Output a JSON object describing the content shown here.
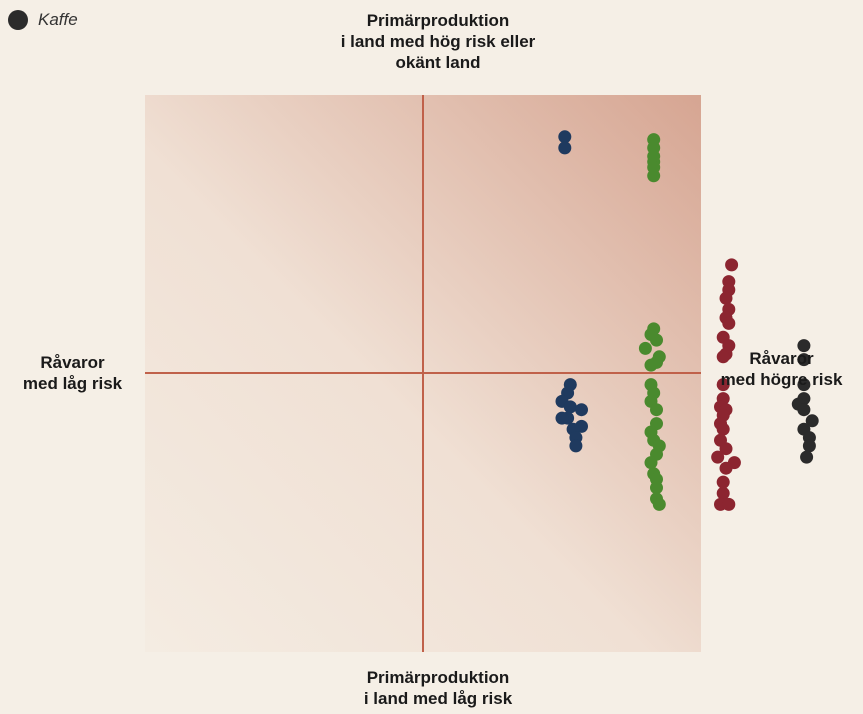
{
  "legend": {
    "items": [
      {
        "label": "Kaffe",
        "color": "#2b2b2b"
      }
    ]
  },
  "labels": {
    "top": [
      "Primärproduktion",
      "i land med hög risk eller",
      "okänt land"
    ],
    "bottom": [
      "Primärproduktion",
      "i land med låg risk"
    ],
    "left": [
      "Råvaror",
      "med låg risk"
    ],
    "right": [
      "Råvaror",
      "med högre risk"
    ]
  },
  "colors": {
    "background": "#f5efe6",
    "quadrant_light": "#f2e7dc",
    "quadrant_dark": "#d6a592",
    "axis": "#c0614a",
    "navy": "#1f3a5f",
    "green": "#4a8a2e",
    "red": "#8c2530",
    "black": "#2b2b2b"
  },
  "chart_data": {
    "type": "scatter",
    "title": "",
    "xlim": [
      -1,
      1
    ],
    "ylim": [
      -1,
      1
    ],
    "grid": false,
    "axes": "cross-at-origin",
    "series": [
      {
        "color": "#1f3a5f",
        "points": [
          [
            0.51,
            0.85
          ],
          [
            0.51,
            0.81
          ],
          [
            0.53,
            -0.04
          ],
          [
            0.52,
            -0.07
          ],
          [
            0.5,
            -0.1
          ],
          [
            0.53,
            -0.12
          ],
          [
            0.57,
            -0.13
          ],
          [
            0.52,
            -0.16
          ],
          [
            0.5,
            -0.16
          ],
          [
            0.57,
            -0.19
          ],
          [
            0.54,
            -0.2
          ],
          [
            0.55,
            -0.23
          ],
          [
            0.55,
            -0.26
          ]
        ]
      },
      {
        "color": "#4a8a2e",
        "points": [
          [
            0.83,
            0.84
          ],
          [
            0.83,
            0.81
          ],
          [
            0.83,
            0.78
          ],
          [
            0.83,
            0.76
          ],
          [
            0.83,
            0.74
          ],
          [
            0.83,
            0.71
          ],
          [
            0.83,
            0.16
          ],
          [
            0.82,
            0.14
          ],
          [
            0.84,
            0.12
          ],
          [
            0.8,
            0.09
          ],
          [
            0.85,
            0.06
          ],
          [
            0.82,
            0.03
          ],
          [
            0.84,
            0.04
          ],
          [
            0.82,
            -0.04
          ],
          [
            0.83,
            -0.07
          ],
          [
            0.82,
            -0.1
          ],
          [
            0.84,
            -0.13
          ],
          [
            0.84,
            -0.18
          ],
          [
            0.82,
            -0.21
          ],
          [
            0.83,
            -0.24
          ],
          [
            0.85,
            -0.26
          ],
          [
            0.84,
            -0.29
          ],
          [
            0.82,
            -0.32
          ],
          [
            0.83,
            -0.36
          ],
          [
            0.84,
            -0.38
          ],
          [
            0.84,
            -0.41
          ],
          [
            0.84,
            -0.45
          ],
          [
            0.85,
            -0.47
          ]
        ]
      },
      {
        "color": "#8c2530",
        "points": [
          [
            1.11,
            0.39
          ],
          [
            1.1,
            0.33
          ],
          [
            1.1,
            0.3
          ],
          [
            1.09,
            0.27
          ],
          [
            1.1,
            0.23
          ],
          [
            1.09,
            0.2
          ],
          [
            1.1,
            0.18
          ],
          [
            1.08,
            0.13
          ],
          [
            1.1,
            0.1
          ],
          [
            1.09,
            0.07
          ],
          [
            1.08,
            0.06
          ],
          [
            1.08,
            -0.04
          ],
          [
            1.08,
            -0.09
          ],
          [
            1.07,
            -0.12
          ],
          [
            1.09,
            -0.13
          ],
          [
            1.08,
            -0.15
          ],
          [
            1.07,
            -0.18
          ],
          [
            1.08,
            -0.2
          ],
          [
            1.07,
            -0.24
          ],
          [
            1.09,
            -0.27
          ],
          [
            1.06,
            -0.3
          ],
          [
            1.12,
            -0.32
          ],
          [
            1.09,
            -0.34
          ],
          [
            1.08,
            -0.39
          ],
          [
            1.08,
            -0.43
          ],
          [
            1.07,
            -0.47
          ],
          [
            1.1,
            -0.47
          ]
        ]
      },
      {
        "color": "#2b2b2b",
        "points": [
          [
            1.37,
            0.1
          ],
          [
            1.37,
            0.05
          ],
          [
            1.37,
            -0.04
          ],
          [
            1.37,
            -0.09
          ],
          [
            1.35,
            -0.11
          ],
          [
            1.37,
            -0.13
          ],
          [
            1.4,
            -0.17
          ],
          [
            1.37,
            -0.2
          ],
          [
            1.39,
            -0.23
          ],
          [
            1.39,
            -0.26
          ],
          [
            1.38,
            -0.3
          ]
        ]
      }
    ]
  }
}
